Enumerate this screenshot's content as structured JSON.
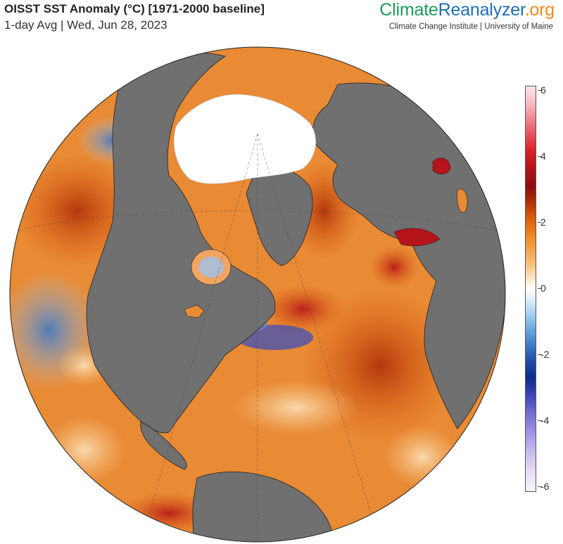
{
  "header": {
    "title": "OISST SST Anomaly (°C) [1971-2000 baseline]",
    "subtitle": "1-day Avg | Wed, Jun 28, 2023"
  },
  "brand": {
    "part1": "Climate",
    "part2": "Reanalyzer",
    "part3": ".org",
    "subtitle": "Climate Change Institute | University of Maine"
  },
  "map": {
    "projection": "orthographic",
    "view": "North Atlantic / North Pole",
    "land_color": "#707070",
    "sea_ice_color": "#ffffff"
  },
  "colorbar": {
    "units": "°C",
    "range": [
      -6,
      6
    ],
    "ticks": [
      "6",
      "4",
      "2",
      "0",
      "-2",
      "-4",
      "-6"
    ]
  }
}
